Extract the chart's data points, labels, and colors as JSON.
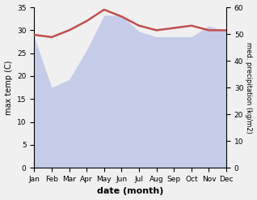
{
  "months": [
    "Jan",
    "Feb",
    "Mar",
    "Apr",
    "May",
    "Jun",
    "Jul",
    "Aug",
    "Sep",
    "Oct",
    "Nov",
    "Dec"
  ],
  "x": [
    0,
    1,
    2,
    3,
    4,
    5,
    6,
    7,
    8,
    9,
    10,
    11
  ],
  "temperature": [
    29.0,
    28.5,
    30.0,
    32.0,
    34.5,
    33.0,
    31.0,
    30.0,
    30.5,
    31.0,
    30.0,
    30.0
  ],
  "precipitation_right": [
    49.0,
    30.0,
    33.0,
    44.0,
    57.0,
    57.0,
    51.0,
    49.0,
    49.0,
    49.0,
    53.0,
    51.0
  ],
  "temp_color": "#c0504d",
  "precip_fill_color": "#c5cce8",
  "precip_line_color": "#a0aad0",
  "temp_lw": 1.8,
  "ylabel_left": "max temp (C)",
  "ylabel_right": "med. precipitation (kg/m2)",
  "xlabel": "date (month)",
  "ylim_left": [
    0,
    35
  ],
  "ylim_right": [
    0,
    60
  ],
  "yticks_left": [
    0,
    5,
    10,
    15,
    20,
    25,
    30,
    35
  ],
  "yticks_right": [
    0,
    10,
    20,
    30,
    40,
    50,
    60
  ],
  "background_color": "#f0f0f0",
  "title": ""
}
